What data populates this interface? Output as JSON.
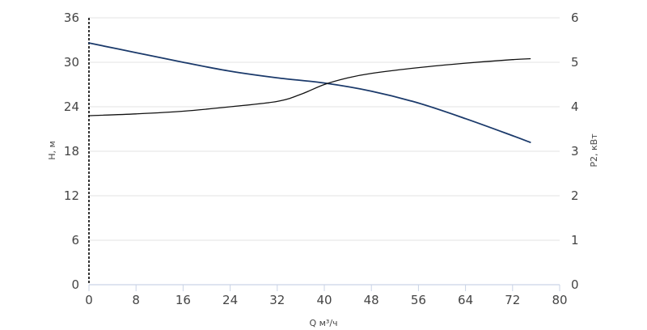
{
  "chart_data": {
    "type": "line",
    "xlabel": "Q м³/ч",
    "ylabel": "Н, м",
    "y2label": "Р2, кВт",
    "xlim": [
      0,
      80
    ],
    "ylim": [
      0,
      36
    ],
    "y2lim": [
      0,
      6
    ],
    "x_ticks": [
      0,
      8,
      16,
      24,
      32,
      40,
      48,
      56,
      64,
      72,
      80
    ],
    "y_ticks": [
      0,
      6,
      12,
      18,
      24,
      30,
      36
    ],
    "y2_ticks": [
      0,
      1,
      2,
      3,
      4,
      5,
      6
    ],
    "grid": "horizontal",
    "legend": "none",
    "series": [
      {
        "axis": "left",
        "color": "#1b3a6b",
        "x": [
          0,
          8,
          16,
          24,
          32,
          40,
          48,
          56,
          64,
          72,
          75
        ],
        "y": [
          32.6,
          31.3,
          30.0,
          28.8,
          27.9,
          27.2,
          26.1,
          24.5,
          22.4,
          20.1,
          19.2
        ]
      },
      {
        "axis": "right",
        "color": "#111111",
        "x": [
          0,
          8,
          16,
          24,
          32,
          36,
          40,
          44,
          48,
          56,
          64,
          72,
          75
        ],
        "y": [
          3.8,
          3.84,
          3.9,
          4.0,
          4.12,
          4.28,
          4.5,
          4.65,
          4.75,
          4.88,
          4.98,
          5.06,
          5.08
        ]
      }
    ]
  }
}
